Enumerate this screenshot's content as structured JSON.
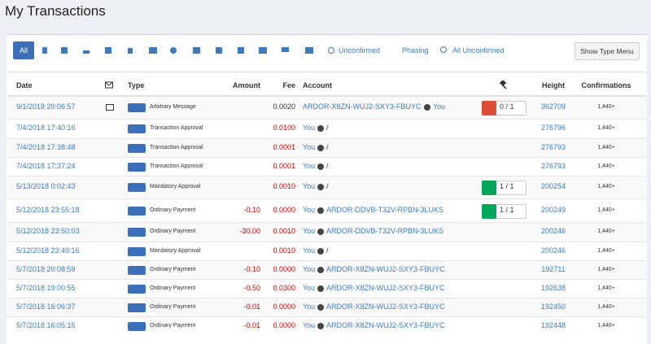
{
  "header": {
    "title": "My Transactions"
  },
  "toolbar": {
    "all": "All",
    "links": [
      "Unconfirmed",
      "Phasing",
      "All Unconfirmed"
    ],
    "menu_button": "Show Type Menu"
  },
  "table": {
    "headers": {
      "date": "Date",
      "type": "Type",
      "amount": "Amount",
      "fee": "Fee",
      "account": "Account",
      "height": "Height",
      "confirmations": "Confirmations"
    },
    "rows": [
      {
        "date": "9/1/2018 20:06:57",
        "type": "Arbitrary Message",
        "amount": null,
        "fee": "0.0020",
        "fee_color": "#333333",
        "from": "ARDOR-X8ZN-WUJ2-SXY3-FBUYC",
        "to": "You",
        "phasing": {
          "text": "0 / 1",
          "color": "#dd4b39"
        },
        "height": "362709",
        "confirmations": "1,440+"
      },
      {
        "date": "7/4/2018 17:40:16",
        "type": "Transaction Approval",
        "amount": null,
        "fee": "0.0100",
        "fee_color": "#dd0000",
        "from": "You",
        "to": "/",
        "phasing": null,
        "height": "276796",
        "confirmations": "1,440+"
      },
      {
        "date": "7/4/2018 17:38:48",
        "type": "Transaction Approval",
        "amount": null,
        "fee": "0.0001",
        "fee_color": "#dd0000",
        "from": "You",
        "to": "/",
        "phasing": null,
        "height": "276793",
        "confirmations": "1,440+"
      },
      {
        "date": "7/4/2018 17:37:24",
        "type": "Transaction Approval",
        "amount": null,
        "fee": "0.0001",
        "fee_color": "#dd0000",
        "from": "You",
        "to": "/",
        "phasing": null,
        "height": "276793",
        "confirmations": "1,440+"
      },
      {
        "date": "5/13/2018 0:02:43",
        "type": "Mandatory Approval",
        "amount": null,
        "fee": "0.0010",
        "fee_color": "#dd0000",
        "from": "You",
        "to": "/",
        "phasing": {
          "text": "1 / 1",
          "color": "#00a65a"
        },
        "height": "200254",
        "confirmations": "1,440+"
      },
      {
        "date": "5/12/2018 23:55:18",
        "type": "Ordinary Payment",
        "amount": "-0.10",
        "fee": "0.0000",
        "fee_color": "#dd0000",
        "from": "You",
        "to": "ARDOR-DDVB-T32V-RPBN-3LUKS",
        "phasing": {
          "text": "1 / 1",
          "color": "#00a65a"
        },
        "height": "200249",
        "confirmations": "1,440+"
      },
      {
        "date": "5/12/2018 23:50:03",
        "type": "Ordinary Payment",
        "amount": "-30.00",
        "fee": "0.0010",
        "fee_color": "#dd0000",
        "from": "You",
        "to": "ARDOR-DDVB-T32V-RPBN-3LUKS",
        "phasing": null,
        "height": "200246",
        "confirmations": "1,440+"
      },
      {
        "date": "5/12/2018 23:49:16",
        "type": "Mandatory Approval",
        "amount": null,
        "fee": "0.0010",
        "fee_color": "#dd0000",
        "from": "You",
        "to": "/",
        "phasing": null,
        "height": "200246",
        "confirmations": "1,440+"
      },
      {
        "date": "5/7/2018 20:08:59",
        "type": "Ordinary Payment",
        "amount": "-0.10",
        "fee": "0.0000",
        "fee_color": "#dd0000",
        "from": "You",
        "to": "ARDOR-X8ZN-WUJ2-SXY3-FBUYC",
        "phasing": null,
        "height": "192711",
        "confirmations": "1,440+"
      },
      {
        "date": "5/7/2018 19:00:55",
        "type": "Ordinary Payment",
        "amount": "-0.50",
        "fee": "0.0300",
        "fee_color": "#dd0000",
        "from": "You",
        "to": "ARDOR-X8ZN-WUJ2-SXY3-FBUYC",
        "phasing": null,
        "height": "192638",
        "confirmations": "1,440+"
      },
      {
        "date": "5/7/2018 16:06:37",
        "type": "Ordinary Payment",
        "amount": "-0.01",
        "fee": "0.0000",
        "fee_color": "#dd0000",
        "from": "You",
        "to": "ARDOR-X8ZN-WUJ2-SXY3-FBUYC",
        "phasing": null,
        "height": "192450",
        "confirmations": "1,440+"
      },
      {
        "date": "5/7/2018 16:05:15",
        "type": "Ordinary Payment",
        "amount": "-0.01",
        "fee": "0.0000",
        "fee_color": "#dd0000",
        "from": "You",
        "to": "ARDOR-X8ZN-WUJ2-SXY3-FBUYC",
        "phasing": null,
        "height": "192448",
        "confirmations": "1,440+"
      }
    ]
  }
}
